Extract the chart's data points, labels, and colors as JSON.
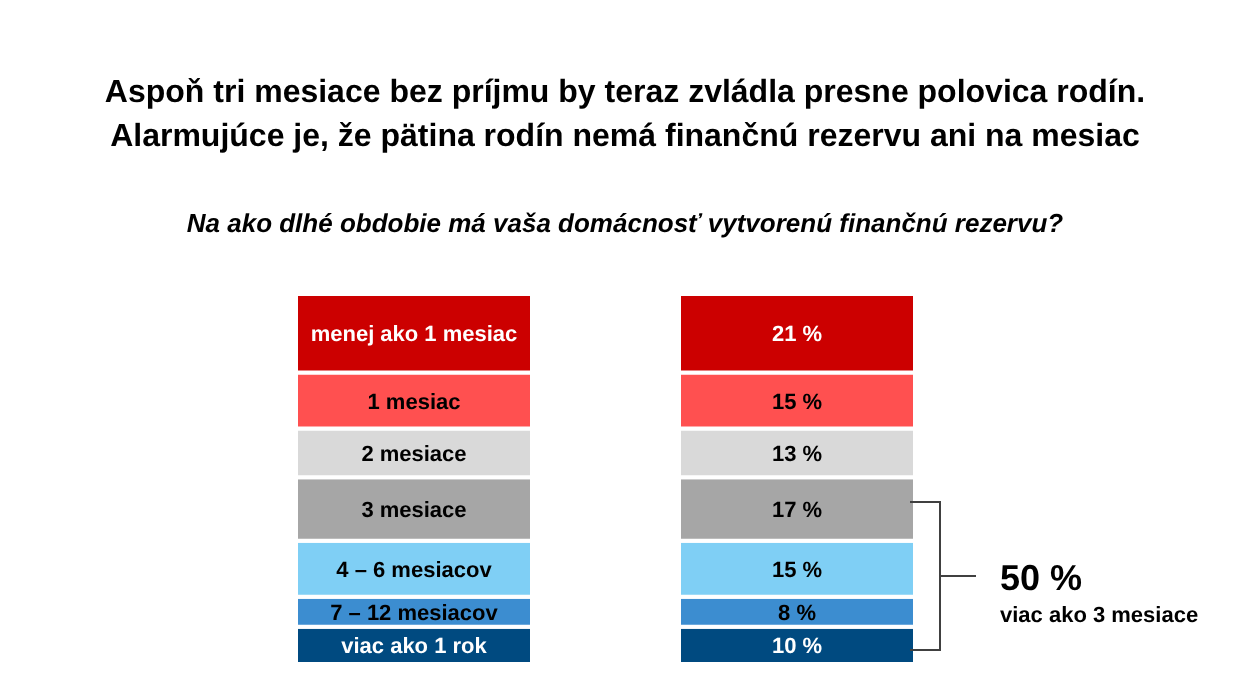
{
  "chart_data": {
    "type": "bar",
    "stacked": true,
    "title": "Aspoň tri mesiace bez príjmu by teraz zvládla presne polovica rodín.\nAlarmujúce je, že pätina rodín nemá finančnú rezervu ani na mesiac",
    "subtitle": "Na ako dlhé obdobie má vaša domácnosť vytvorenú finančnú rezervu?",
    "categories": [
      null,
      null
    ],
    "series": [
      {
        "name": "viac ako 1 rok",
        "color": "#004a80",
        "values": [
          10,
          10
        ],
        "value_labels": [
          null,
          "10 %"
        ]
      },
      {
        "name": "7 – 12 mesiacov",
        "color": "#3c8dd0",
        "values": [
          8,
          8
        ],
        "value_labels": [
          null,
          "8 %"
        ]
      },
      {
        "name": "4 – 6 mesiacov",
        "color": "#7fcff5",
        "values": [
          15,
          15
        ],
        "value_labels": [
          null,
          "15 %"
        ]
      },
      {
        "name": "3 mesiace",
        "color": "#a6a6a6",
        "values": [
          17,
          17
        ],
        "value_labels": [
          null,
          "17 %"
        ]
      },
      {
        "name": "2 mesiace",
        "color": "#d9d9d9",
        "values": [
          13,
          13
        ],
        "value_labels": [
          null,
          "13 %"
        ]
      },
      {
        "name": "1 mesiac",
        "color": "#ff5050",
        "values": [
          15,
          15
        ],
        "value_labels": [
          null,
          "15 %"
        ]
      },
      {
        "name": "menej ako 1 mesiac",
        "color": "#cc0000",
        "values": [
          21,
          21
        ],
        "value_labels": [
          null,
          "21 %"
        ]
      }
    ],
    "annotations": [
      "50 %",
      "viac ako 3 mesiace"
    ]
  }
}
